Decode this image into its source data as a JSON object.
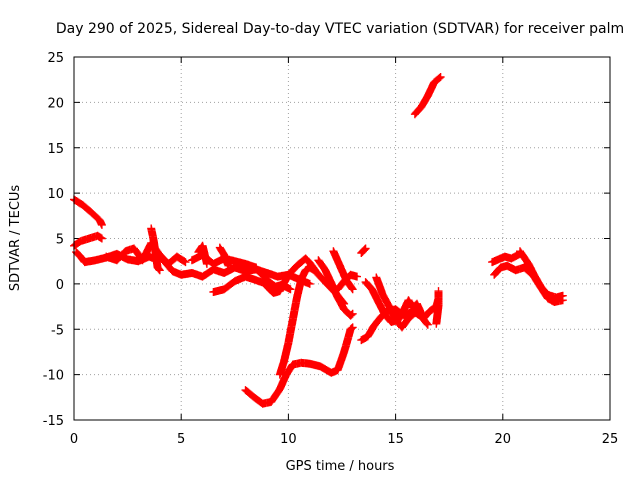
{
  "chart_data": {
    "type": "scatter",
    "title": "Day 290 of 2025, Sidereal Day-to-day VTEC variation (SDTVAR) for receiver palm",
    "xlabel": "GPS time / hours",
    "ylabel": "SDTVAR / TECUs",
    "xlim": [
      0,
      25
    ],
    "ylim": [
      -15,
      25
    ],
    "xticks": [
      "0",
      "5",
      "10",
      "15",
      "20",
      "25"
    ],
    "yticks": [
      "-15",
      "-10",
      "-5",
      "0",
      "5",
      "10",
      "15",
      "20",
      "25"
    ],
    "grid": true,
    "marker": "+",
    "series": [
      {
        "name": "SDTVAR",
        "color": "#ff0000",
        "tracks": [
          [
            [
              0.0,
              9.3
            ],
            [
              0.4,
              8.7
            ],
            [
              0.8,
              7.9
            ],
            [
              1.2,
              7.0
            ],
            [
              1.3,
              6.5
            ]
          ],
          [
            [
              0.0,
              4.2
            ],
            [
              0.3,
              4.7
            ],
            [
              0.7,
              5.0
            ],
            [
              1.1,
              5.3
            ],
            [
              1.3,
              5.0
            ]
          ],
          [
            [
              0.1,
              3.5
            ],
            [
              0.3,
              3.0
            ],
            [
              0.5,
              2.4
            ],
            [
              1.0,
              2.6
            ],
            [
              1.5,
              2.9
            ],
            [
              2.0,
              3.3
            ],
            [
              2.5,
              2.7
            ],
            [
              3.0,
              2.5
            ],
            [
              3.5,
              3.0
            ],
            [
              4.0,
              2.6
            ]
          ],
          [
            [
              1.5,
              3.0
            ],
            [
              2.0,
              2.6
            ],
            [
              2.4,
              3.6
            ],
            [
              2.8,
              3.9
            ],
            [
              3.2,
              2.6
            ],
            [
              3.6,
              4.5
            ],
            [
              4.0,
              3.2
            ],
            [
              4.4,
              2.2
            ],
            [
              4.8,
              3.0
            ],
            [
              5.2,
              2.4
            ]
          ],
          [
            [
              3.6,
              6.1
            ],
            [
              3.7,
              5.0
            ],
            [
              3.8,
              3.5
            ],
            [
              3.9,
              1.8
            ],
            [
              4.0,
              1.5
            ]
          ],
          [
            [
              4.2,
              2.5
            ],
            [
              4.6,
              1.4
            ],
            [
              5.0,
              1.0
            ],
            [
              5.5,
              1.2
            ],
            [
              6.0,
              0.8
            ],
            [
              6.5,
              1.6
            ],
            [
              7.0,
              1.2
            ],
            [
              7.5,
              1.8
            ],
            [
              8.0,
              1.4
            ],
            [
              8.5,
              1.6
            ],
            [
              9.0,
              1.2
            ],
            [
              9.5,
              0.8
            ],
            [
              10.0,
              1.0
            ],
            [
              10.5,
              0.5
            ],
            [
              11.0,
              0.0
            ]
          ],
          [
            [
              5.5,
              2.6
            ],
            [
              6.0,
              3.2
            ],
            [
              6.5,
              2.2
            ],
            [
              7.0,
              2.8
            ],
            [
              7.5,
              2.5
            ],
            [
              8.0,
              2.2
            ],
            [
              8.5,
              1.8
            ]
          ],
          [
            [
              5.8,
              3.5
            ],
            [
              6.0,
              4.2
            ],
            [
              6.2,
              2.2
            ]
          ],
          [
            [
              6.5,
              -0.9
            ],
            [
              7.0,
              -0.6
            ],
            [
              7.5,
              0.3
            ],
            [
              8.0,
              0.8
            ],
            [
              8.5,
              0.4
            ],
            [
              9.0,
              0.0
            ]
          ],
          [
            [
              6.8,
              4.0
            ],
            [
              7.0,
              3.2
            ],
            [
              7.2,
              2.0
            ]
          ],
          [
            [
              8.0,
              -11.7
            ],
            [
              8.4,
              -12.5
            ],
            [
              8.8,
              -13.2
            ],
            [
              9.2,
              -13.0
            ],
            [
              9.6,
              -11.6
            ],
            [
              9.9,
              -10.0
            ],
            [
              10.2,
              -8.9
            ],
            [
              10.6,
              -8.7
            ],
            [
              11.0,
              -8.8
            ],
            [
              11.5,
              -9.1
            ],
            [
              12.0,
              -9.8
            ],
            [
              12.3,
              -9.5
            ],
            [
              12.6,
              -7.5
            ],
            [
              12.9,
              -5.0
            ],
            [
              13.0,
              -4.8
            ]
          ],
          [
            [
              9.6,
              -10.0
            ],
            [
              9.8,
              -8.5
            ],
            [
              10.0,
              -6.5
            ],
            [
              10.2,
              -4.0
            ],
            [
              10.4,
              -1.5
            ],
            [
              10.6,
              0.5
            ],
            [
              10.8,
              1.5
            ],
            [
              11.0,
              1.8
            ],
            [
              11.2,
              1.5
            ]
          ],
          [
            [
              9.0,
              -0.3
            ],
            [
              9.3,
              -1.0
            ],
            [
              9.6,
              -0.8
            ],
            [
              10.0,
              1.0
            ],
            [
              10.4,
              2.0
            ],
            [
              10.8,
              2.8
            ],
            [
              11.0,
              2.3
            ],
            [
              11.4,
              1.0
            ],
            [
              11.8,
              0.0
            ],
            [
              12.2,
              -1.0
            ],
            [
              12.6,
              -2.2
            ]
          ],
          [
            [
              8.4,
              1.8
            ],
            [
              8.8,
              1.0
            ],
            [
              9.1,
              0.2
            ],
            [
              9.4,
              -0.3
            ],
            [
              9.7,
              -0.1
            ],
            [
              10.1,
              -0.6
            ]
          ],
          [
            [
              11.4,
              2.6
            ],
            [
              11.7,
              1.6
            ],
            [
              12.0,
              0.1
            ],
            [
              12.3,
              -1.5
            ],
            [
              12.6,
              -2.8
            ],
            [
              12.9,
              -3.5
            ],
            [
              13.0,
              -3.3
            ]
          ],
          [
            [
              12.3,
              -0.6
            ],
            [
              12.6,
              0.3
            ],
            [
              12.9,
              1.0
            ],
            [
              13.2,
              0.8
            ]
          ],
          [
            [
              12.1,
              3.6
            ],
            [
              12.4,
              2.0
            ],
            [
              12.7,
              0.4
            ],
            [
              13.0,
              -0.6
            ]
          ],
          [
            [
              13.4,
              3.4
            ],
            [
              13.6,
              3.9
            ]
          ],
          [
            [
              13.4,
              -6.2
            ],
            [
              13.7,
              -5.8
            ],
            [
              14.0,
              -4.6
            ],
            [
              14.3,
              -3.7
            ],
            [
              14.6,
              -3.0
            ],
            [
              15.0,
              -2.8
            ],
            [
              15.4,
              -3.5
            ],
            [
              15.8,
              -3.0
            ],
            [
              16.2,
              -3.6
            ],
            [
              16.5,
              -4.5
            ]
          ],
          [
            [
              14.1,
              0.7
            ],
            [
              14.4,
              -1.2
            ],
            [
              14.7,
              -2.5
            ],
            [
              15.0,
              -3.9
            ],
            [
              15.3,
              -4.8
            ],
            [
              15.6,
              -3.8
            ],
            [
              15.9,
              -3.2
            ]
          ],
          [
            [
              13.6,
              0.2
            ],
            [
              13.9,
              -0.6
            ],
            [
              14.2,
              -2.0
            ],
            [
              14.5,
              -3.4
            ],
            [
              14.8,
              -4.2
            ],
            [
              15.1,
              -4.0
            ],
            [
              15.4,
              -3.0
            ]
          ],
          [
            [
              15.0,
              -4.0
            ],
            [
              15.4,
              -2.8
            ],
            [
              15.6,
              -1.8
            ],
            [
              15.8,
              -2.6
            ],
            [
              16.0,
              -2.2
            ],
            [
              16.3,
              -3.8
            ],
            [
              16.6,
              -3.0
            ],
            [
              16.9,
              -2.5
            ],
            [
              17.0,
              -1.6
            ]
          ],
          [
            [
              16.9,
              -4.4
            ],
            [
              17.0,
              -2.4
            ],
            [
              17.0,
              -0.8
            ]
          ],
          [
            [
              15.9,
              18.7
            ],
            [
              16.2,
              19.5
            ],
            [
              16.5,
              20.7
            ],
            [
              16.8,
              22.2
            ],
            [
              17.1,
              22.8
            ]
          ],
          [
            [
              19.5,
              2.4
            ],
            [
              19.8,
              2.7
            ],
            [
              20.1,
              3.0
            ],
            [
              20.4,
              2.8
            ],
            [
              20.8,
              3.3
            ]
          ],
          [
            [
              19.6,
              1.0
            ],
            [
              19.9,
              1.8
            ],
            [
              20.2,
              2.0
            ],
            [
              20.6,
              1.5
            ],
            [
              21.0,
              1.8
            ],
            [
              21.4,
              1.0
            ],
            [
              21.8,
              -0.5
            ],
            [
              22.1,
              -1.6
            ],
            [
              22.4,
              -2.0
            ],
            [
              22.8,
              -1.8
            ]
          ],
          [
            [
              20.8,
              3.6
            ],
            [
              21.2,
              2.2
            ],
            [
              21.5,
              0.8
            ],
            [
              21.8,
              -0.4
            ],
            [
              22.1,
              -1.2
            ],
            [
              22.5,
              -1.5
            ],
            [
              22.8,
              -1.3
            ]
          ]
        ]
      }
    ]
  }
}
